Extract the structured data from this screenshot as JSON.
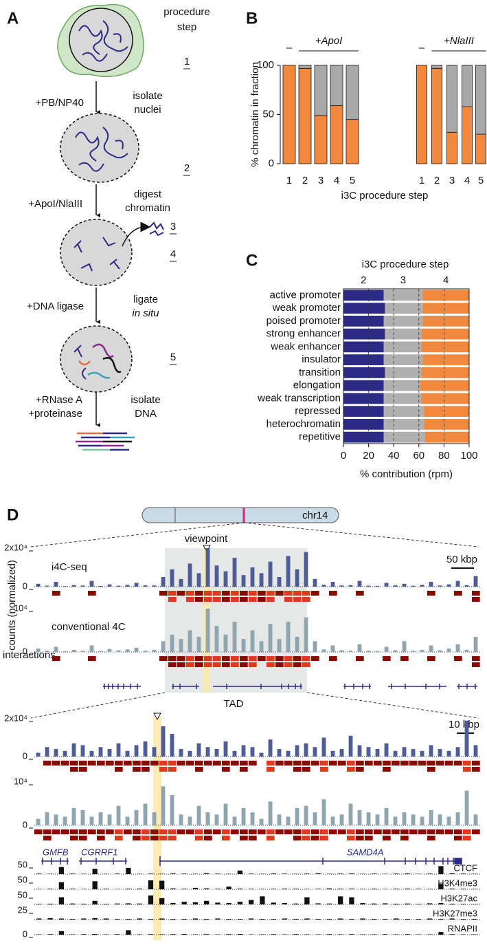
{
  "panel_a": {
    "letter": "A",
    "heading": [
      "procedure",
      "step"
    ],
    "steps": [
      "1",
      "2",
      "3",
      "4",
      "5"
    ],
    "reagents": [
      [
        "+PB/NP40"
      ],
      [
        "+ApoI/NlaIII"
      ],
      [
        "+DNA ligase"
      ],
      [
        "+RNase A",
        "+proteinase"
      ]
    ],
    "actions": [
      [
        "isolate",
        "nuclei"
      ],
      [
        "digest",
        "chromatin"
      ],
      [
        "ligate",
        "in situ"
      ],
      [
        "isolate",
        "DNA"
      ]
    ]
  },
  "chart_data": [
    {
      "type": "stacked-bar",
      "panel": "B",
      "ylabel": "% chromatin in fraction",
      "xlabel": "i3C procedure step",
      "ylim": [
        0,
        100
      ],
      "yticks": [
        0,
        50,
        100
      ],
      "groups": [
        {
          "control": "–",
          "treatment": "+ApoI",
          "categories": [
            "1",
            "2",
            "3",
            "4",
            "5"
          ],
          "series": [
            {
              "color": "#f0883e",
              "values": [
                100,
                97,
                49,
                59,
                45
              ],
              "errors": [
                null,
                1,
                8,
                10,
                1
              ]
            },
            {
              "color": "#a8a8a8",
              "values": [
                0,
                3,
                51,
                41,
                55
              ]
            }
          ]
        },
        {
          "control": "–",
          "treatment": "+NlaIII",
          "categories": [
            "1",
            "2",
            "3",
            "4",
            "5"
          ],
          "series": [
            {
              "color": "#f0883e",
              "values": [
                100,
                97,
                32,
                58,
                30
              ],
              "errors": [
                null,
                2,
                1,
                2,
                5
              ]
            },
            {
              "color": "#a8a8a8",
              "values": [
                0,
                3,
                68,
                42,
                70
              ]
            }
          ]
        }
      ]
    },
    {
      "type": "stacked-hbar",
      "panel": "C",
      "title": "i3C procedure step",
      "xlabel": "% contribution (rpm)",
      "xlim": [
        0,
        100
      ],
      "xticks": [
        0,
        20,
        40,
        60,
        80,
        100
      ],
      "grid": true,
      "categories": [
        "active promoter",
        "weak promoter",
        "poised promoter",
        "strong enhancer",
        "weak enhancer",
        "insulator",
        "transition",
        "elongation",
        "weak transcription",
        "repressed",
        "heterochromatin",
        "repetitive"
      ],
      "series": [
        {
          "name": "2",
          "color": "#2b2a85",
          "values": [
            32,
            33,
            32,
            33,
            32,
            32,
            33,
            32,
            32,
            32,
            32,
            32
          ]
        },
        {
          "name": "3",
          "color": "#b0b0b0",
          "values": [
            31,
            30,
            31,
            29,
            30,
            31,
            29,
            29,
            30,
            32,
            32,
            33
          ]
        },
        {
          "name": "4",
          "color": "#f0883e",
          "values": [
            37,
            37,
            37,
            38,
            38,
            37,
            38,
            39,
            38,
            36,
            36,
            35
          ]
        }
      ]
    },
    {
      "type": "track",
      "label": "i4C-seq",
      "color": "#4f5d96",
      "ylim": [
        0,
        20000
      ],
      "yticks": [
        0,
        {
          "value": 20000,
          "label": "2x10⁴"
        }
      ],
      "values": [
        1500,
        500,
        2500,
        300,
        800,
        600,
        3000,
        400,
        1200,
        500,
        900,
        2000,
        700,
        600,
        5000,
        9000,
        4000,
        12000,
        7000,
        20000,
        11000,
        8000,
        15000,
        6000,
        10000,
        7000,
        13000,
        5000,
        16000,
        9000,
        18000,
        4000,
        1000,
        2500,
        600,
        800,
        3000,
        500,
        400,
        2000,
        700,
        1500,
        500,
        900,
        2500,
        600,
        1200,
        3000,
        800,
        5500
      ]
    },
    {
      "type": "track",
      "label": "conventional 4C",
      "color": "#8fa6b0",
      "ylim": [
        0,
        10000
      ],
      "yticks": [
        0,
        {
          "value": 10000,
          "label": "10⁴"
        }
      ],
      "values": [
        800,
        300,
        1200,
        200,
        500,
        300,
        1500,
        200,
        700,
        400,
        600,
        1000,
        300,
        500,
        2500,
        4000,
        3000,
        5000,
        3500,
        10000,
        6000,
        4000,
        7000,
        3000,
        5000,
        2500,
        6500,
        3000,
        7000,
        3500,
        8000,
        2500,
        600,
        1500,
        400,
        300,
        1800,
        300,
        200,
        1200,
        400,
        2500,
        300,
        500,
        1500,
        400,
        800,
        1800,
        500,
        3500
      ]
    },
    {
      "type": "track",
      "color": "#4f5d96",
      "ylim": [
        0,
        20000
      ],
      "yticks": [
        0,
        {
          "value": 20000,
          "label": "2x10⁴"
        }
      ],
      "values": [
        2000,
        5000,
        4000,
        3000,
        7000,
        6000,
        3000,
        5000,
        4000,
        7000,
        3000,
        6000,
        8000,
        5000,
        16000,
        12000,
        4000,
        3000,
        7000,
        5000,
        4000,
        8000,
        3000,
        6000,
        5000,
        2000,
        9000,
        4000,
        3000,
        6000,
        7000,
        5000,
        10000,
        3000,
        4000,
        11000,
        6000,
        5000,
        4000,
        7000,
        3000,
        5000,
        4000,
        3000,
        6000,
        4000,
        3000,
        5000,
        19000,
        6000
      ]
    },
    {
      "type": "track",
      "color": "#8fa6b0",
      "ylim": [
        0,
        10000
      ],
      "yticks": [
        0,
        {
          "value": 10000,
          "label": "10⁴"
        }
      ],
      "values": [
        1500,
        3000,
        2500,
        2000,
        4000,
        3500,
        2000,
        3000,
        2500,
        4500,
        2000,
        3500,
        5000,
        3000,
        9000,
        7000,
        2500,
        2000,
        4500,
        3000,
        2500,
        5000,
        2000,
        4000,
        3000,
        1500,
        5500,
        2500,
        2000,
        4000,
        4500,
        3000,
        6000,
        2000,
        2500,
        5000,
        3500,
        3000,
        2500,
        4000,
        2000,
        3000,
        2500,
        2000,
        3500,
        2500,
        2000,
        3000,
        8000,
        2500
      ]
    },
    {
      "type": "track",
      "label": "CTCF",
      "color": "#111111",
      "ylim": [
        0,
        50
      ],
      "yticks": [
        50
      ],
      "values": [
        3,
        2,
        40,
        3,
        2,
        30,
        2,
        3,
        35,
        2,
        3,
        2,
        4,
        3,
        2,
        5,
        3,
        2,
        20,
        3,
        2,
        4,
        3,
        2,
        3,
        5,
        2,
        3,
        4,
        2,
        3,
        2,
        3,
        4,
        2,
        3,
        45,
        5,
        3,
        2
      ]
    },
    {
      "type": "track",
      "label": "H3K4me3",
      "color": "#111111",
      "ylim": [
        0,
        50
      ],
      "yticks": [
        50
      ],
      "values": [
        2,
        3,
        40,
        3,
        2,
        45,
        3,
        2,
        3,
        4,
        50,
        48,
        5,
        3,
        8,
        5,
        3,
        15,
        4,
        3,
        2,
        3,
        4,
        3,
        2,
        3,
        5,
        3,
        4,
        2,
        3,
        2,
        3,
        4,
        3,
        2,
        30,
        4,
        3,
        2
      ]
    },
    {
      "type": "track",
      "label": "H3K27ac",
      "color": "#111111",
      "ylim": [
        0,
        50
      ],
      "yticks": [
        50
      ],
      "values": [
        3,
        4,
        40,
        5,
        4,
        20,
        3,
        5,
        6,
        5,
        50,
        35,
        8,
        15,
        12,
        20,
        10,
        8,
        15,
        25,
        45,
        10,
        8,
        5,
        40,
        6,
        5,
        45,
        40,
        8,
        5,
        6,
        4,
        5,
        3,
        6,
        8,
        4,
        3,
        2
      ]
    },
    {
      "type": "track",
      "label": "H3K27me3",
      "color": "#111111",
      "ylim": [
        0,
        25
      ],
      "yticks": [
        25
      ],
      "values": [
        3,
        4,
        3,
        2,
        3,
        4,
        3,
        2,
        2,
        3,
        2,
        3,
        2,
        2,
        3,
        2,
        3,
        2,
        2,
        3,
        2,
        2,
        3,
        2,
        3,
        2,
        2,
        3,
        2,
        3,
        2,
        2,
        3,
        2,
        2,
        3,
        2,
        3,
        2,
        2
      ]
    },
    {
      "type": "track",
      "label": "RNAPII",
      "color": "#111111",
      "ylim": [
        0,
        50
      ],
      "yticks": [
        0
      ],
      "values": [
        2,
        3,
        20,
        2,
        3,
        4,
        2,
        3,
        25,
        2,
        3,
        2,
        3,
        4,
        2,
        3,
        2,
        3,
        4,
        2,
        2,
        3,
        2,
        3,
        2,
        2,
        3,
        2,
        3,
        2,
        2,
        3,
        2,
        3,
        2,
        2,
        15,
        3,
        2,
        2
      ]
    }
  ],
  "panel_d": {
    "letter": "D",
    "chromosome": "chr14",
    "viewpoint": "viewpoint",
    "scale_top": "50 kbp",
    "scale_zoom": "10 kbp",
    "ylabel": "counts (normalized)",
    "interactions": "interactions",
    "tad": "TAD",
    "genes": [
      "GMFB",
      "CGRRF1",
      "SAMD4A"
    ]
  }
}
